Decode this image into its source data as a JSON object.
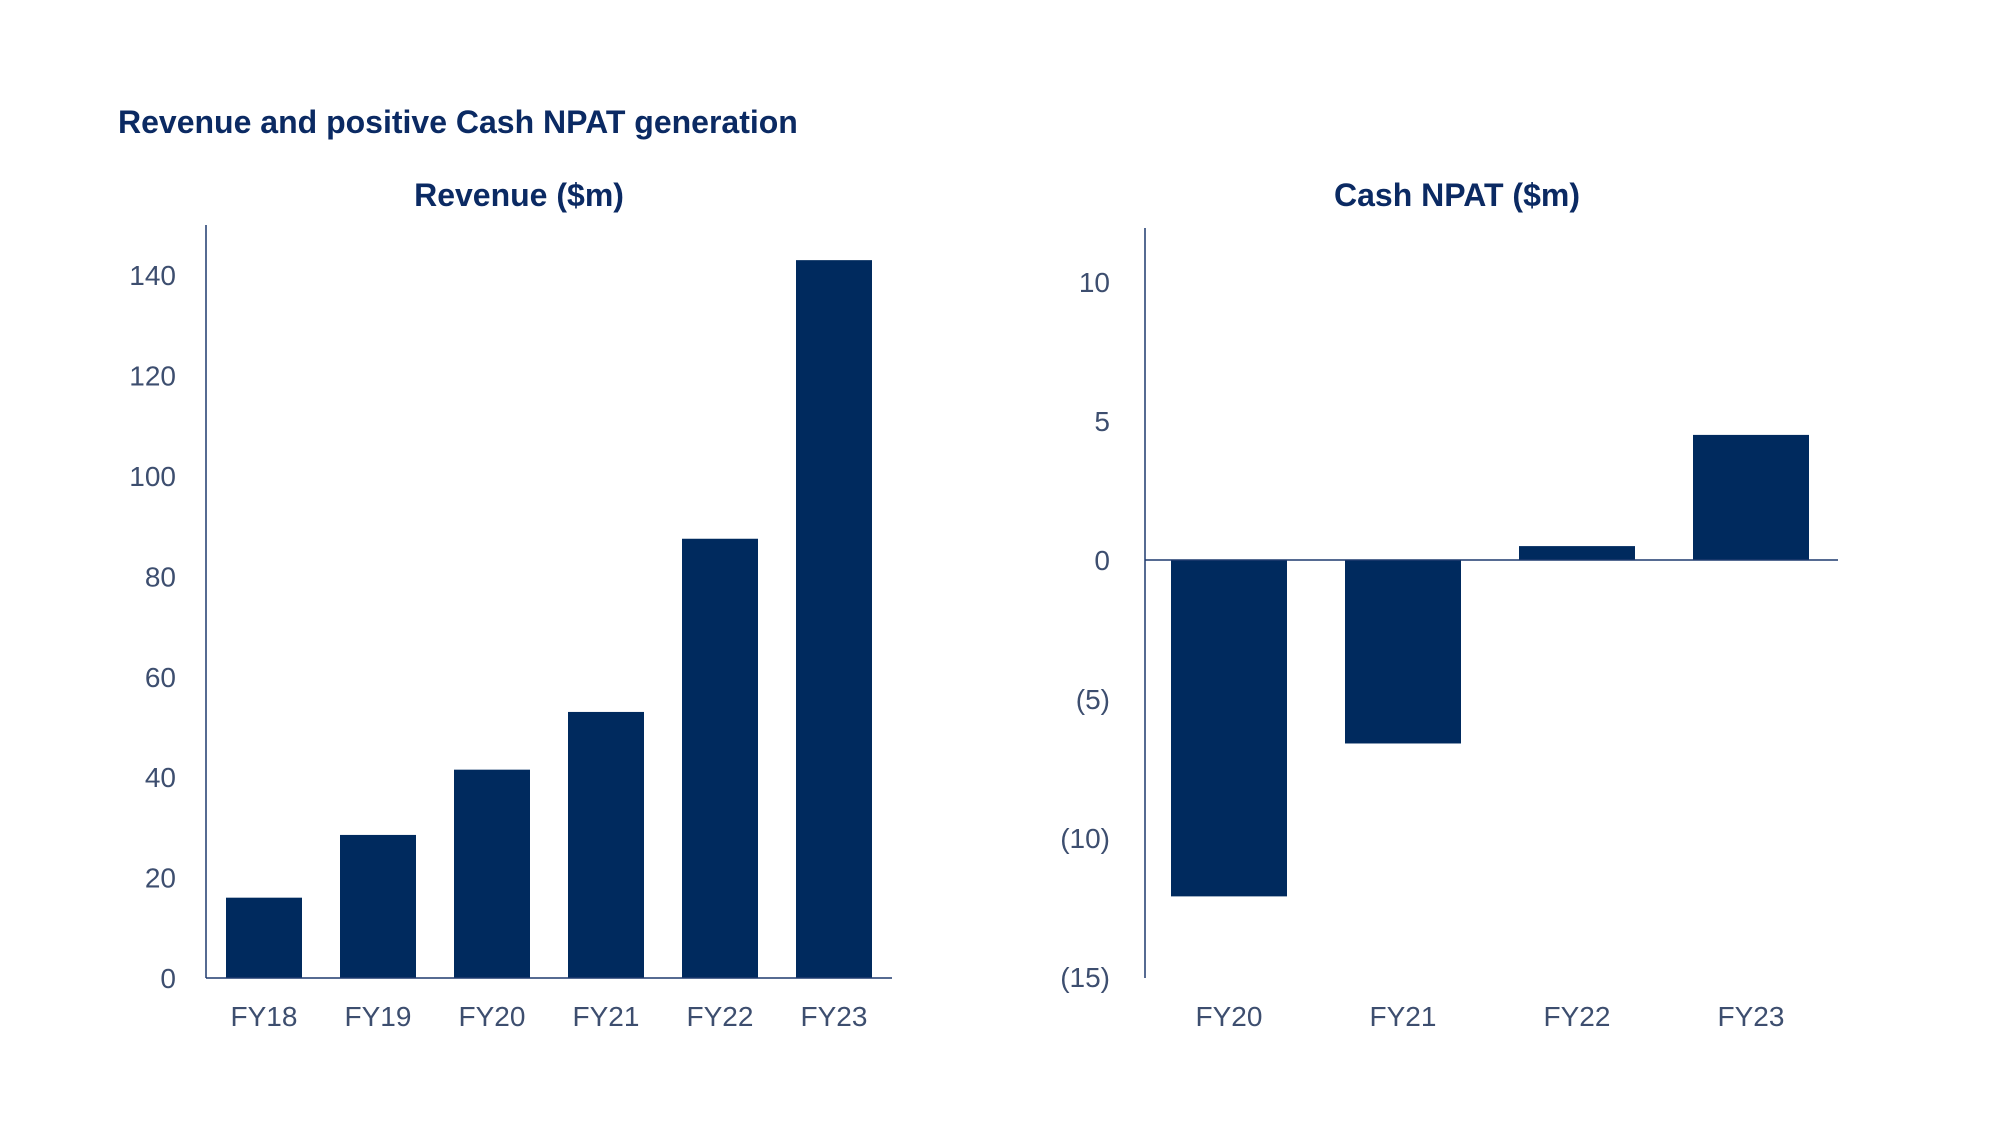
{
  "title": "Revenue and positive Cash NPAT generation",
  "colors": {
    "bar": "#002a5e",
    "axis": "#1f3a6e",
    "text": "#3d4e6f",
    "title": "#0b2a63"
  },
  "chart_data": [
    {
      "type": "bar",
      "title": "Revenue ($m)",
      "xlabel": "",
      "ylabel": "",
      "categories": [
        "FY18",
        "FY19",
        "FY20",
        "FY21",
        "FY22",
        "FY23"
      ],
      "values": [
        16,
        28.5,
        41.5,
        53,
        87.5,
        143
      ],
      "ylim": [
        0,
        150
      ],
      "yticks": [
        0,
        20,
        40,
        60,
        80,
        100,
        120,
        140
      ],
      "ytick_labels": [
        "0",
        "20",
        "40",
        "60",
        "80",
        "100",
        "120",
        "140"
      ],
      "grid": false
    },
    {
      "type": "bar",
      "title": "Cash NPAT ($m)",
      "xlabel": "",
      "ylabel": "",
      "categories": [
        "FY20",
        "FY21",
        "FY22",
        "FY23"
      ],
      "values": [
        -12.1,
        -6.6,
        0.5,
        4.5
      ],
      "ylim": [
        -15,
        12
      ],
      "yticks": [
        10,
        5,
        0,
        -5,
        -10,
        -15
      ],
      "ytick_labels": [
        "10",
        "5",
        "0",
        "(5)",
        "(10)",
        "(15)"
      ],
      "grid": false
    }
  ]
}
